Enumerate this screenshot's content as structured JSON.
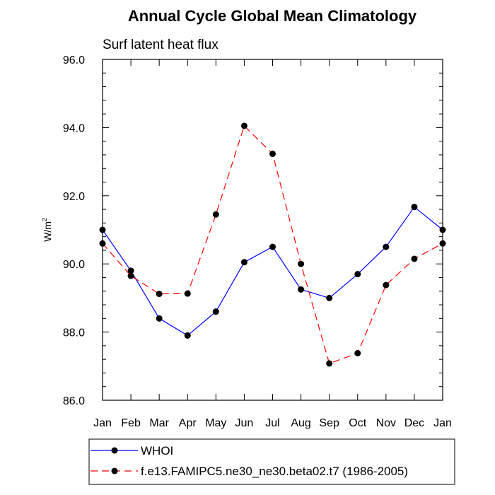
{
  "chart_data": {
    "type": "line",
    "title": "Annual Cycle Global Mean Climatology",
    "subtitle": "Surf latent heat flux",
    "xlabel": "",
    "ylabel": "W/m",
    "ylabel_sup": "2",
    "categories": [
      "Jan",
      "Feb",
      "Mar",
      "Apr",
      "May",
      "Jun",
      "Jul",
      "Aug",
      "Sep",
      "Oct",
      "Nov",
      "Dec",
      "Jan"
    ],
    "ylim": [
      86.0,
      96.0
    ],
    "yticks": [
      "86.0",
      "88.0",
      "90.0",
      "92.0",
      "94.0",
      "96.0"
    ],
    "ytick_values": [
      86,
      88,
      90,
      92,
      94,
      96
    ],
    "grid": false,
    "legend_position": "bottom",
    "series": [
      {
        "name": "WHOI",
        "color": "#0000ff",
        "dash": "solid",
        "values": [
          91.0,
          89.8,
          88.4,
          87.9,
          88.6,
          90.05,
          90.5,
          89.25,
          89.0,
          89.7,
          90.5,
          91.67,
          91.0
        ]
      },
      {
        "name": "f.e13.FAMIPC5.ne30_ne30.beta02.t7 (1986-2005)",
        "color": "#ff0000",
        "dash": "dashed",
        "values": [
          90.6,
          89.65,
          89.12,
          89.13,
          91.45,
          94.05,
          93.23,
          90.0,
          87.08,
          87.38,
          89.38,
          90.15,
          90.6
        ]
      }
    ]
  }
}
